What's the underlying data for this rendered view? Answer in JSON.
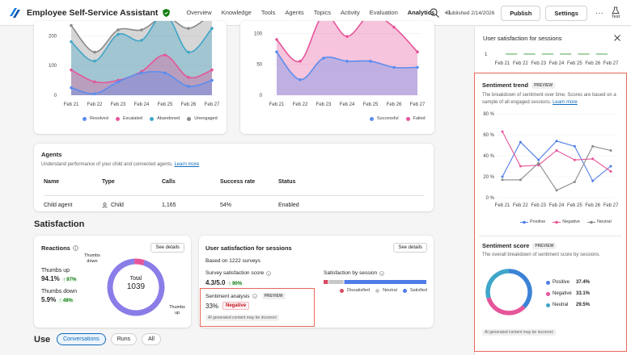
{
  "app": {
    "title": "Employee Self-Service Assistant"
  },
  "nav": {
    "tabs": [
      "Overview",
      "Knowledge",
      "Tools",
      "Agents",
      "Topics",
      "Activity",
      "Evaluation",
      "Analytics",
      "+1"
    ],
    "active": "Analytics"
  },
  "topbar": {
    "published": "Published 2/14/2026",
    "publish_label": "Publish",
    "settings_label": "Settings",
    "more_label": "···",
    "test_label": "Test"
  },
  "colors": {
    "blue": "#5b8def",
    "pink": "#e6559a",
    "teal": "#3fa6c9",
    "gray": "#8a8a8a",
    "red": "#d94a62",
    "accent": "#0f6cbd"
  },
  "sessions_chart": {
    "chart_data": {
      "type": "area",
      "categories": [
        "Feb 21",
        "Feb 22",
        "Feb 23",
        "Feb 24",
        "Feb 25",
        "Feb 26",
        "Feb 27"
      ],
      "yticks": [
        "200",
        "100",
        "0"
      ],
      "ylim": [
        0,
        250
      ],
      "series": [
        {
          "name": "Resolved",
          "values": [
            25,
            5,
            45,
            75,
            75,
            30,
            50
          ]
        },
        {
          "name": "Escalated",
          "values": [
            85,
            45,
            50,
            80,
            135,
            60,
            85
          ]
        },
        {
          "name": "Abandoned",
          "values": [
            180,
            115,
            205,
            185,
            275,
            145,
            225
          ]
        },
        {
          "name": "Unengaged",
          "values": [
            235,
            145,
            220,
            220,
            265,
            225,
            275
          ]
        }
      ]
    }
  },
  "outcomes_chart": {
    "chart_data": {
      "type": "area",
      "categories": [
        "Feb 21",
        "Feb 22",
        "Feb 23",
        "Feb 24",
        "Feb 25",
        "Feb 26",
        "Feb 27"
      ],
      "yticks": [
        "100",
        "50",
        "0"
      ],
      "ylim": [
        0,
        120
      ],
      "series": [
        {
          "name": "Successful",
          "values": [
            70,
            25,
            60,
            55,
            55,
            45,
            45
          ]
        },
        {
          "name": "Failed",
          "values": [
            90,
            55,
            130,
            95,
            130,
            110,
            70
          ]
        }
      ]
    }
  },
  "agents": {
    "title": "Agents",
    "description": "Understand performance of your child and connected agents.",
    "learn_more": "Learn more",
    "columns": [
      "Name",
      "Type",
      "Calls",
      "Success rate",
      "Status"
    ],
    "rows": [
      {
        "name": "Child agent",
        "type": "Child",
        "calls": "1,165",
        "success": "54%",
        "status": "Enabled"
      }
    ]
  },
  "satisfaction": {
    "title": "Satisfaction"
  },
  "reactions": {
    "title": "Reactions",
    "see_details": "See details",
    "up_label": "Thumbs up",
    "up_value": "94.1%",
    "up_delta": "↑ 97%",
    "down_label": "Thumbs down",
    "down_value": "5.9%",
    "down_delta": "↑ 48%",
    "total_label": "Total",
    "total_value": "1039",
    "donut_down_label": "Thumbs down",
    "donut_up_label": "Thumbs up",
    "chart_data": {
      "type": "pie",
      "categories": [
        "Thumbs up",
        "Thumbs down"
      ],
      "values": [
        94.1,
        5.9
      ]
    }
  },
  "user_sat": {
    "title": "User satisfaction for sessions",
    "see_details": "See details",
    "based_on": "Based on 1222 surveys",
    "score_label": "Survey satisfaction score",
    "score_value": "4.3/5.0",
    "score_delta": "↑ 90%",
    "by_session_label": "Satisfaction by session",
    "legend": [
      "Dissatisfied",
      "Neutral",
      "Satisfied"
    ],
    "bar": [
      {
        "name": "Dissatisfied",
        "value": 5
      },
      {
        "name": "Neutral",
        "value": 15
      },
      {
        "name": "Satisfied",
        "value": 80
      }
    ],
    "sentiment_label": "Sentiment analysis",
    "preview": "PREVIEW",
    "sentiment_value": "33%",
    "sentiment_badge": "Negative",
    "ai_note": "AI generated content may be incorrect"
  },
  "use_section": {
    "title": "Use",
    "pills": [
      "Conversations",
      "Runs",
      "All"
    ]
  },
  "panel": {
    "title": "User satisfaction for sessions",
    "top_axis_value": "1",
    "top_categories": [
      "Feb 21",
      "Feb 22",
      "Feb 23",
      "Feb 24",
      "Feb 25",
      "Feb 26",
      "Feb 27"
    ],
    "trend": {
      "title": "Sentiment trend",
      "preview": "PREVIEW",
      "description": "The breakdown of sentiment over time. Scores are based on a sample of all engaged sessions.",
      "learn_more": "Learn more",
      "chart_data": {
        "type": "line",
        "categories": [
          "Feb 21",
          "Feb 22",
          "Feb 23",
          "Feb 24",
          "Feb 25",
          "Feb 26",
          "Feb 27"
        ],
        "yticks": [
          "80 %",
          "60 %",
          "40 %",
          "20 %",
          "0 %"
        ],
        "ylim": [
          0,
          80
        ],
        "series": [
          {
            "name": "Positive",
            "values": [
              20,
              53,
              36,
              54,
              49,
              16,
              30
            ]
          },
          {
            "name": "Negative",
            "values": [
              63,
              30,
              31,
              45,
              36,
              37,
              25
            ]
          },
          {
            "name": "Neutral",
            "values": [
              17,
              17,
              33,
              7,
              15,
              49,
              45
            ]
          }
        ]
      }
    },
    "score": {
      "title": "Sentiment score",
      "preview": "PREVIEW",
      "description": "The overall breakdown of sentiment score by sessions.",
      "legend": [
        {
          "label": "Positive",
          "value": "37.4%"
        },
        {
          "label": "Negative",
          "value": "33.1%"
        },
        {
          "label": "Neutral",
          "value": "29.5%"
        }
      ],
      "chart_data": {
        "type": "pie",
        "categories": [
          "Positive",
          "Negative",
          "Neutral"
        ],
        "values": [
          37.4,
          33.1,
          29.5
        ]
      },
      "ai_note": "AI generated content may be incorrect"
    }
  }
}
